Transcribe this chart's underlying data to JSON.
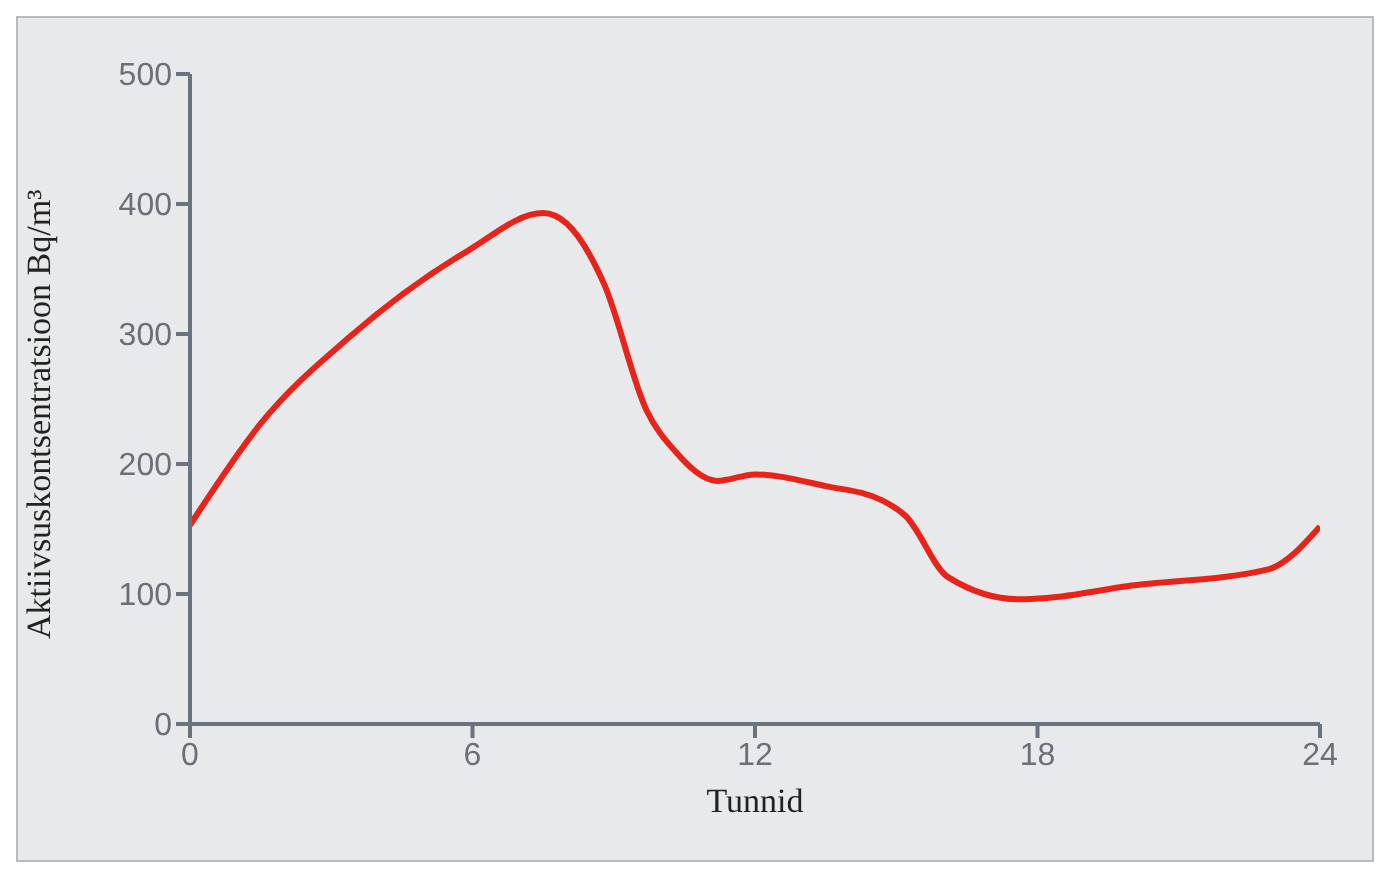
{
  "chart_data": {
    "type": "line",
    "xlabel": "Tunnid",
    "ylabel": "Aktiivsuskontsentratsioon Bq/m³",
    "x": [
      0,
      1.5,
      3.4,
      5.9,
      7.5,
      8,
      8.8,
      9.7,
      10.3,
      11.2,
      12,
      13.5,
      14.7,
      15.2,
      16.1,
      17.6,
      18.2,
      19.9,
      22.9,
      24
    ],
    "series": [
      {
        "color": "#e8231a",
        "values": [
          153,
          231,
          298,
          364,
          393,
          385,
          338,
          241,
          210,
          187,
          192,
          183,
          172,
          160,
          113,
          96,
          97,
          106,
          119,
          152
        ]
      }
    ],
    "xlim": [
      0,
      24
    ],
    "xticks": [
      0,
      6,
      12,
      18,
      24
    ],
    "ylim": [
      0,
      500
    ],
    "yticks": [
      0,
      100,
      200,
      300,
      400,
      500
    ],
    "grid": false,
    "marker": "none",
    "line_style": "solid"
  }
}
